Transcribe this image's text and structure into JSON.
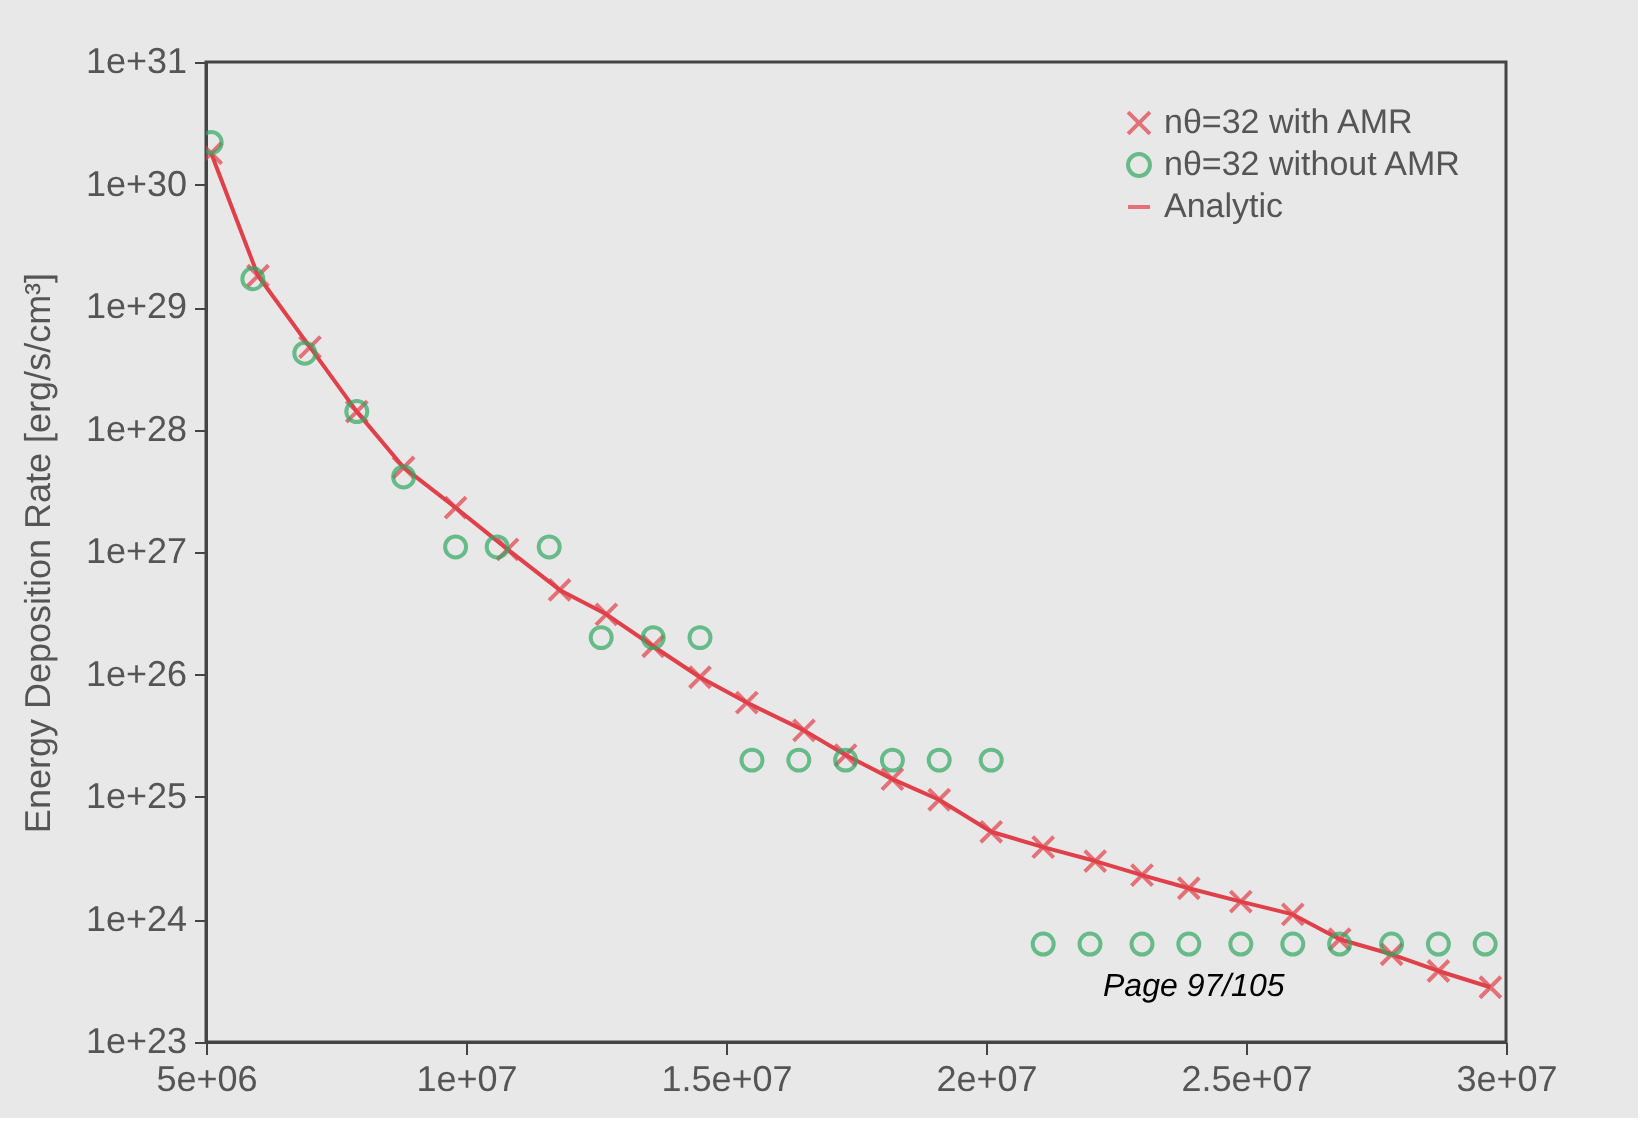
{
  "chart_data": {
    "type": "scatter",
    "ylabel": "Energy Deposition Rate [erg/s/cm³]",
    "log": "y",
    "legend": "top right",
    "grid": false,
    "xlim": [
      5000000,
      30000000
    ],
    "xticks": [
      {
        "value": 5000000,
        "label": "5e+06"
      },
      {
        "value": 10000000,
        "label": "1e+07"
      },
      {
        "value": 15000000,
        "label": "1.5e+07"
      },
      {
        "value": 20000000,
        "label": "2e+07"
      },
      {
        "value": 25000000,
        "label": "2.5e+07"
      },
      {
        "value": 30000000,
        "label": "3e+07"
      }
    ],
    "ylim": [
      1e+23,
      1e+31
    ],
    "yticks": [
      {
        "value": 1e+23,
        "label": "1e+23"
      },
      {
        "value": 1e+24,
        "label": "1e+24"
      },
      {
        "value": 1e+25,
        "label": "1e+25"
      },
      {
        "value": 1e+26,
        "label": "1e+26"
      },
      {
        "value": 1e+27,
        "label": "1e+27"
      },
      {
        "value": 1e+28,
        "label": "1e+28"
      },
      {
        "value": 1e+29,
        "label": "1e+29"
      },
      {
        "value": 1e+30,
        "label": "1e+30"
      },
      {
        "value": 1e+31,
        "label": "1e+31"
      }
    ],
    "annotations": [
      "Page 97/105"
    ],
    "series": [
      {
        "name": "nθ=32 with AMR",
        "type": "scatter",
        "marker": "cross",
        "color": "#e0404a",
        "x": [
          5100000,
          6000000,
          7000000,
          7900000,
          8800000,
          9800000,
          10800000,
          11800000,
          12700000,
          13600000,
          14500000,
          15400000,
          16500000,
          17300000,
          18200000,
          19100000,
          20100000,
          21100000,
          22100000,
          23000000,
          23900000,
          24900000,
          25900000,
          26800000,
          27800000,
          28700000,
          29700000
        ],
        "values": [
          1.8e+30,
          1.8e+29,
          4.7e+28,
          1.4e+28,
          4.9e+27,
          2.3e+27,
          1.05e+27,
          4.9e+26,
          3.1e+26,
          1.7e+26,
          9.5e+25,
          5.9e+25,
          3.5e+25,
          2.2e+25,
          1.4e+25,
          9.5e+24,
          5.2e+24,
          3.9e+24,
          3e+24,
          2.3e+24,
          1.8e+24,
          1.4e+24,
          1.1e+24,
          6.9e+23,
          5.2e+23,
          3.8e+23,
          2.8e+23
        ]
      },
      {
        "name": "nθ=32 without AMR",
        "type": "scatter",
        "marker": "circle",
        "color": "#30a860",
        "x": [
          5100000,
          5900000,
          6900000,
          7900000,
          8800000,
          9800000,
          10600000,
          11600000,
          12600000,
          13600000,
          14500000,
          15500000,
          16400000,
          17300000,
          18200000,
          19100000,
          20100000,
          21100000,
          22000000,
          23000000,
          23900000,
          24900000,
          25900000,
          26800000,
          27800000,
          28700000,
          29600000
        ],
        "values": [
          2.2e+30,
          1.7e+29,
          4.2e+28,
          1.4e+28,
          4.1e+27,
          1.1e+27,
          1.1e+27,
          1.1e+27,
          2e+26,
          2e+26,
          2e+26,
          2e+25,
          2e+25,
          2e+25,
          2e+25,
          2e+25,
          2e+25,
          6.3e+23,
          6.3e+23,
          6.3e+23,
          6.3e+23,
          6.3e+23,
          6.3e+23,
          6.3e+23,
          6.3e+23,
          6.3e+23,
          6.3e+23
        ]
      },
      {
        "name": "Analytic",
        "type": "line",
        "marker": "none",
        "color": "#e0404a",
        "x": [
          5100000,
          6000000,
          7000000,
          7900000,
          8800000,
          9800000,
          10800000,
          11800000,
          12700000,
          13600000,
          14500000,
          15400000,
          16500000,
          17300000,
          18200000,
          19100000,
          20100000,
          21100000,
          22100000,
          23000000,
          23900000,
          24900000,
          25900000,
          26800000,
          27800000,
          28700000,
          29700000
        ],
        "values": [
          1.8e+30,
          1.8e+29,
          4.7e+28,
          1.4e+28,
          4.9e+27,
          2.3e+27,
          1.05e+27,
          4.9e+26,
          3.1e+26,
          1.7e+26,
          9.5e+25,
          5.9e+25,
          3.5e+25,
          2.2e+25,
          1.4e+25,
          9.5e+24,
          5.2e+24,
          3.9e+24,
          3e+24,
          2.3e+24,
          1.8e+24,
          1.4e+24,
          1.1e+24,
          6.9e+23,
          5.2e+23,
          3.8e+23,
          2.8e+23
        ]
      }
    ]
  }
}
